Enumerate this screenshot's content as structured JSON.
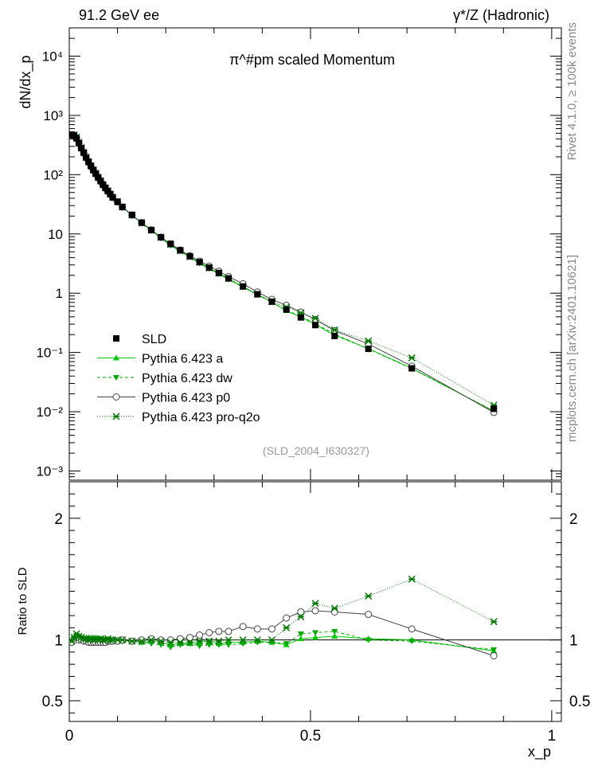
{
  "header": {
    "left": "91.2 GeV ee",
    "right": "γ*/Z (Hadronic)"
  },
  "side_labels": {
    "rivet": "Rivet 4.1.0, ≥ 100k events",
    "source": "mcplots.cern.ch [arXiv:2401.10621]"
  },
  "colors": {
    "sld": "#000000",
    "pythia_a": "#00cc00",
    "pythia_dw": "#00aa00",
    "pythia_p0": "#444444",
    "pythia_pro": "#007700",
    "analysis_label": "#999999"
  },
  "chart_data": [
    {
      "type": "scatter",
      "panel": "main",
      "title": "π^#pm scaled Momentum",
      "ylabel": "dN/dx_p",
      "yscale": "log",
      "ylim": [
        0.0007,
        30000
      ],
      "xlim": [
        0,
        1.02
      ],
      "y_ticks": [
        {
          "v": 0.001,
          "label": "10⁻³"
        },
        {
          "v": 0.01,
          "label": "10⁻²"
        },
        {
          "v": 0.1,
          "label": "10⁻¹"
        },
        {
          "v": 1,
          "label": "1"
        },
        {
          "v": 10,
          "label": "10"
        },
        {
          "v": 100,
          "label": "10²"
        },
        {
          "v": 1000,
          "label": "10³"
        },
        {
          "v": 10000,
          "label": "10⁴"
        }
      ],
      "analysis_label": "(SLD_2004_I630327)",
      "legend": [
        "SLD",
        "Pythia 6.423 a",
        "Pythia 6.423 dw",
        "Pythia 6.423 p0",
        "Pythia 6.423 pro-q2o"
      ],
      "x": [
        0.005,
        0.01,
        0.015,
        0.02,
        0.025,
        0.03,
        0.035,
        0.04,
        0.045,
        0.05,
        0.055,
        0.06,
        0.065,
        0.07,
        0.075,
        0.08,
        0.085,
        0.09,
        0.1,
        0.11,
        0.13,
        0.15,
        0.17,
        0.19,
        0.21,
        0.23,
        0.25,
        0.27,
        0.29,
        0.31,
        0.33,
        0.36,
        0.39,
        0.42,
        0.45,
        0.48,
        0.51,
        0.55,
        0.62,
        0.71,
        0.88
      ],
      "sld": [
        475,
        460,
        410,
        340,
        280,
        235,
        195,
        165,
        140,
        120,
        104,
        90,
        78,
        68,
        60,
        53,
        47,
        41.5,
        35,
        28.5,
        21,
        15.5,
        11.6,
        8.8,
        6.8,
        5.3,
        4.2,
        3.35,
        2.7,
        2.2,
        1.78,
        1.3,
        0.96,
        0.72,
        0.53,
        0.39,
        0.29,
        0.19,
        0.115,
        0.054,
        0.0112
      ],
      "series": [
        {
          "name": "Pythia 6.423 a",
          "ratio": [
            1.0,
            1.02,
            1.04,
            1.03,
            1.02,
            1.01,
            1.02,
            1.02,
            1.02,
            1.01,
            1.02,
            1.01,
            1.01,
            1.01,
            1.01,
            1.0,
            1.01,
            1.0,
            1.0,
            0.99,
            0.99,
            0.98,
            0.99,
            0.98,
            0.96,
            0.97,
            0.97,
            0.98,
            0.99,
            0.97,
            0.98,
            0.98,
            0.99,
            0.98,
            0.96,
            1.01,
            1.02,
            1.03,
            1.01,
            1.0,
            0.91
          ]
        },
        {
          "name": "Pythia 6.423 dw",
          "ratio": [
            0.99,
            1.01,
            1.03,
            1.02,
            1.01,
            1.01,
            1.0,
            1.01,
            1.01,
            1.01,
            1.0,
            1.0,
            1.01,
            1.0,
            1.0,
            1.0,
            0.99,
            1.0,
            0.99,
            0.99,
            0.98,
            0.98,
            0.97,
            0.96,
            0.94,
            0.96,
            0.97,
            0.95,
            0.96,
            0.96,
            0.96,
            0.97,
            0.98,
            0.98,
            0.97,
            1.05,
            1.06,
            1.07,
            1.0,
            0.99,
            0.92
          ]
        },
        {
          "name": "Pythia 6.423 p0",
          "ratio": [
            0.98,
            1.0,
            1.02,
            1.0,
            1.0,
            0.99,
            0.99,
            0.98,
            0.98,
            0.98,
            0.98,
            0.98,
            0.98,
            0.98,
            0.98,
            0.99,
            0.99,
            0.99,
            0.99,
            1.0,
            0.99,
            1.0,
            1.01,
            1.0,
            1.0,
            1.01,
            1.02,
            1.04,
            1.06,
            1.07,
            1.07,
            1.11,
            1.09,
            1.09,
            1.18,
            1.23,
            1.24,
            1.23,
            1.21,
            1.09,
            0.87
          ]
        },
        {
          "name": "Pythia 6.423 pro-q2o",
          "ratio": [
            0.99,
            1.02,
            1.05,
            1.03,
            1.02,
            1.01,
            1.01,
            1.0,
            1.01,
            1.0,
            1.01,
            1.0,
            1.01,
            1.0,
            1.0,
            1.01,
            1.0,
            1.0,
            1.0,
            1.0,
            0.99,
            0.99,
            1.0,
            0.99,
            0.98,
            0.98,
            0.98,
            0.99,
            0.99,
            0.99,
            1.0,
            1.0,
            1.0,
            1.0,
            1.1,
            1.19,
            1.3,
            1.26,
            1.36,
            1.5,
            1.15
          ]
        }
      ]
    },
    {
      "type": "line",
      "panel": "ratio",
      "ylabel": "Ratio to SLD",
      "xlabel": "x_p",
      "ylim": [
        0.33,
        2.3
      ],
      "xlim": [
        0,
        1.02
      ],
      "y_ticks": [
        {
          "v": 0.5,
          "label": "0.5"
        },
        {
          "v": 1,
          "label": "1"
        },
        {
          "v": 2,
          "label": "2"
        }
      ],
      "x_ticks": [
        {
          "v": 0,
          "label": "0"
        },
        {
          "v": 0.5,
          "label": "0.5"
        },
        {
          "v": 1,
          "label": "1"
        }
      ]
    }
  ]
}
